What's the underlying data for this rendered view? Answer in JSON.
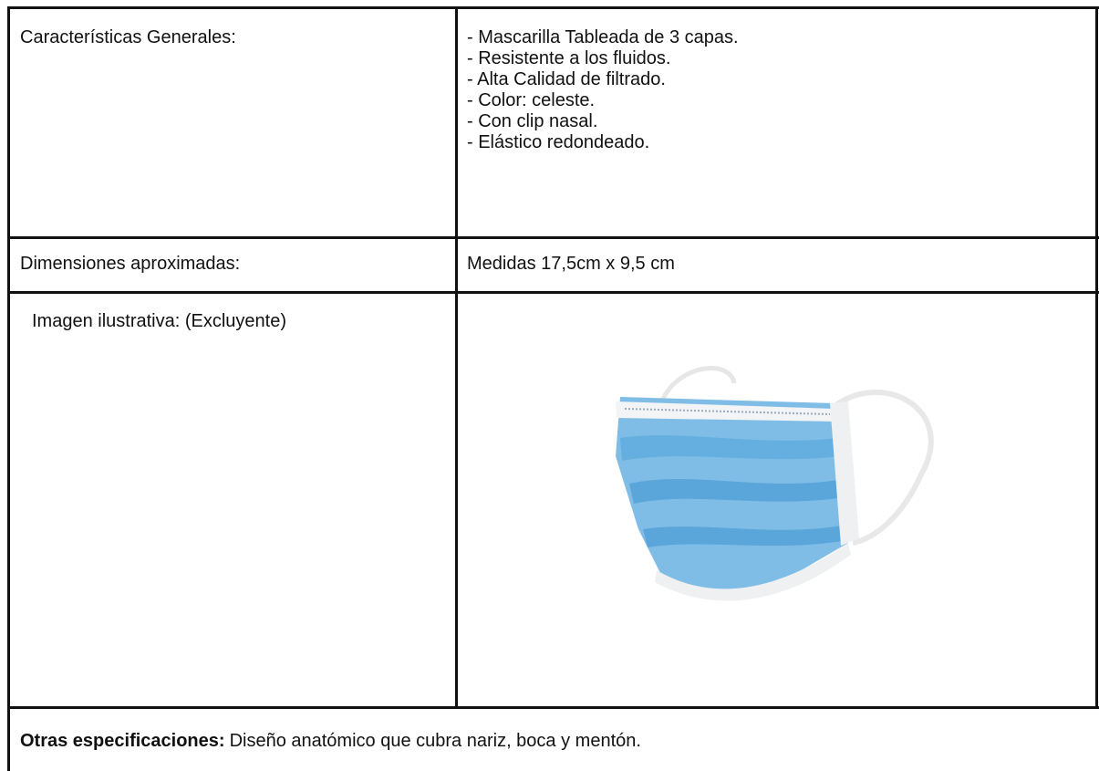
{
  "table": {
    "rows": [
      {
        "label": "Características Generales:",
        "items": [
          "- Mascarilla Tableada de 3 capas.",
          "- Resistente a los fluidos.",
          "- Alta Calidad de filtrado.",
          "- Color: celeste.",
          "- Con clip nasal.",
          "- Elástico redondeado."
        ]
      },
      {
        "label": "Dimensiones aproximadas:",
        "value": "Medidas 17,5cm x 9,5 cm"
      },
      {
        "label": "Imagen ilustrativa: (Excluyente)"
      }
    ],
    "footer": {
      "label": "Otras especificaciones:",
      "text": "Diseño anatómico que cubra nariz, boca y mentón."
    }
  }
}
